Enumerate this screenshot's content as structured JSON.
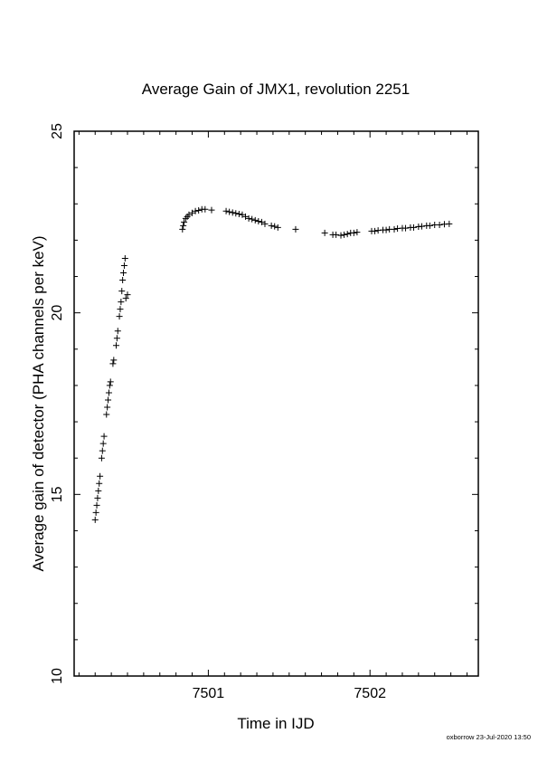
{
  "chart_data": {
    "type": "scatter",
    "title": "Average Gain of JMX1, revolution 2251",
    "xlabel": "Time in IJD",
    "ylabel": "Average gain of detector (PHA channels per keV)",
    "xlim": [
      7500.17,
      7502.67
    ],
    "ylim": [
      10,
      25
    ],
    "x_ticks": [
      7501,
      7502
    ],
    "x_tick_labels": [
      "7501",
      "7502"
    ],
    "x_minor_step": 0.1,
    "y_ticks": [
      10,
      15,
      20,
      25
    ],
    "y_tick_labels": [
      "10",
      "15",
      "20",
      "25"
    ],
    "y_minor_step": 1,
    "grid": false,
    "legend": "none",
    "marker": "plus",
    "color": "#000000",
    "series": [
      {
        "points": [
          [
            7500.3,
            14.3
          ],
          [
            7500.305,
            14.5
          ],
          [
            7500.31,
            14.7
          ],
          [
            7500.315,
            14.9
          ],
          [
            7500.32,
            15.1
          ],
          [
            7500.325,
            15.3
          ],
          [
            7500.33,
            15.5
          ],
          [
            7500.34,
            16.0
          ],
          [
            7500.345,
            16.2
          ],
          [
            7500.35,
            16.4
          ],
          [
            7500.355,
            16.6
          ],
          [
            7500.37,
            17.2
          ],
          [
            7500.375,
            17.4
          ],
          [
            7500.38,
            17.6
          ],
          [
            7500.385,
            17.8
          ],
          [
            7500.39,
            18.0
          ],
          [
            7500.395,
            18.1
          ],
          [
            7500.41,
            18.6
          ],
          [
            7500.415,
            18.7
          ],
          [
            7500.43,
            19.1
          ],
          [
            7500.435,
            19.3
          ],
          [
            7500.44,
            19.5
          ],
          [
            7500.45,
            19.9
          ],
          [
            7500.455,
            20.1
          ],
          [
            7500.46,
            20.3
          ],
          [
            7500.465,
            20.6
          ],
          [
            7500.47,
            20.9
          ],
          [
            7500.475,
            21.1
          ],
          [
            7500.48,
            21.3
          ],
          [
            7500.485,
            21.5
          ],
          [
            7500.49,
            20.4
          ],
          [
            7500.5,
            20.5
          ],
          [
            7500.84,
            22.3
          ],
          [
            7500.845,
            22.4
          ],
          [
            7500.85,
            22.5
          ],
          [
            7500.86,
            22.6
          ],
          [
            7500.87,
            22.65
          ],
          [
            7500.88,
            22.7
          ],
          [
            7500.9,
            22.75
          ],
          [
            7500.92,
            22.8
          ],
          [
            7500.94,
            22.82
          ],
          [
            7500.96,
            22.85
          ],
          [
            7500.98,
            22.85
          ],
          [
            7501.02,
            22.83
          ],
          [
            7501.11,
            22.8
          ],
          [
            7501.13,
            22.78
          ],
          [
            7501.15,
            22.76
          ],
          [
            7501.17,
            22.74
          ],
          [
            7501.19,
            22.72
          ],
          [
            7501.21,
            22.7
          ],
          [
            7501.23,
            22.65
          ],
          [
            7501.25,
            22.6
          ],
          [
            7501.27,
            22.58
          ],
          [
            7501.29,
            22.55
          ],
          [
            7501.31,
            22.52
          ],
          [
            7501.33,
            22.5
          ],
          [
            7501.35,
            22.45
          ],
          [
            7501.39,
            22.4
          ],
          [
            7501.41,
            22.38
          ],
          [
            7501.43,
            22.35
          ],
          [
            7501.54,
            22.3
          ],
          [
            7501.72,
            22.2
          ],
          [
            7501.77,
            22.15
          ],
          [
            7501.79,
            22.15
          ],
          [
            7501.82,
            22.13
          ],
          [
            7501.84,
            22.15
          ],
          [
            7501.86,
            22.17
          ],
          [
            7501.88,
            22.2
          ],
          [
            7501.9,
            22.2
          ],
          [
            7501.92,
            22.22
          ],
          [
            7502.01,
            22.25
          ],
          [
            7502.03,
            22.25
          ],
          [
            7502.05,
            22.27
          ],
          [
            7502.08,
            22.28
          ],
          [
            7502.1,
            22.28
          ],
          [
            7502.12,
            22.3
          ],
          [
            7502.15,
            22.3
          ],
          [
            7502.17,
            22.32
          ],
          [
            7502.2,
            22.33
          ],
          [
            7502.22,
            22.33
          ],
          [
            7502.25,
            22.35
          ],
          [
            7502.27,
            22.35
          ],
          [
            7502.3,
            22.37
          ],
          [
            7502.32,
            22.38
          ],
          [
            7502.35,
            22.4
          ],
          [
            7502.37,
            22.4
          ],
          [
            7502.4,
            22.42
          ],
          [
            7502.43,
            22.42
          ],
          [
            7502.46,
            22.44
          ],
          [
            7502.49,
            22.45
          ]
        ]
      }
    ]
  },
  "footer": {
    "stamp": "oxborrow 23-Jul-2020 13:50"
  }
}
